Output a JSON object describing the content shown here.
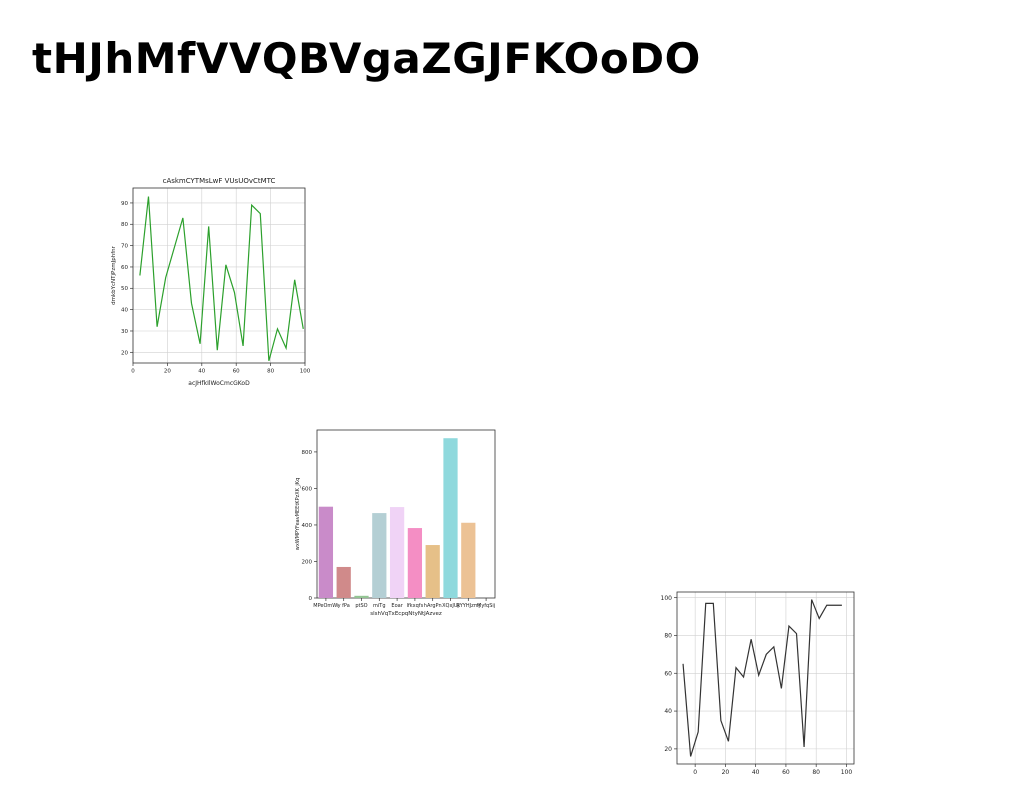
{
  "page": {
    "title": "tHJhMfVVQBVgaZGJFKOoDO"
  },
  "chart_data": [
    {
      "type": "line",
      "title": "cAskmCYTMsLwF VUsUOvCtMTC",
      "xlabel": "acJHfkIlWoCmcGKoD",
      "ylabel": "dmkbYcNTjPzmJphfnr",
      "xlim": [
        0,
        100
      ],
      "ylim": [
        15,
        97
      ],
      "xticks": [
        0,
        20,
        40,
        60,
        80,
        100
      ],
      "yticks": [
        20,
        30,
        40,
        50,
        60,
        70,
        80,
        90
      ],
      "grid": true,
      "line_color": "#2ca02c",
      "x": [
        4,
        9,
        14,
        19,
        29,
        34,
        39,
        44,
        49,
        54,
        59,
        64,
        69,
        74,
        79,
        84,
        89,
        94,
        99
      ],
      "values": [
        56,
        93,
        32,
        55,
        83,
        43,
        24,
        79,
        21,
        61,
        48,
        23,
        89,
        85,
        16,
        31,
        22,
        54,
        31
      ]
    },
    {
      "type": "bar",
      "title": "",
      "xlabel": "slshVqTxEcpqNtyNtJAzvez",
      "ylabel": "wxWMPYFeavMEEtKPzXK_jKq",
      "ylim": [
        0,
        920
      ],
      "yticks": [
        0,
        200,
        400,
        600,
        800
      ],
      "grid": false,
      "categories": [
        "MPeOmWi",
        "y fPa",
        "ptSO",
        "miTg",
        "Eoar",
        "lfkxqfs",
        "hArgPn",
        "XQxJUj",
        "RYYHJzmj",
        "MyfqSij"
      ],
      "values": [
        500,
        170,
        12,
        465,
        498,
        383,
        290,
        875,
        412,
        0
      ],
      "colors": [
        "#c98bc9",
        "#d08a8a",
        "#93c493",
        "#b4cfd4",
        "#f0d3f6",
        "#f48ec4",
        "#e6c088",
        "#8fd9dd",
        "#ecc295",
        "#ecc295"
      ]
    },
    {
      "type": "line",
      "title": "",
      "xlabel": "",
      "ylabel": "",
      "xlim": [
        -12,
        105
      ],
      "ylim": [
        12,
        103
      ],
      "xticks": [
        0,
        20,
        40,
        60,
        80,
        100
      ],
      "yticks": [
        20,
        40,
        60,
        80,
        100
      ],
      "grid": true,
      "line_color": "#333333",
      "x": [
        -8,
        -3,
        2,
        7,
        12,
        17,
        22,
        27,
        32,
        37,
        42,
        47,
        52,
        57,
        62,
        67,
        72,
        77,
        82,
        87,
        92,
        97
      ],
      "values": [
        65,
        16,
        29,
        97,
        97,
        35,
        24,
        63,
        58,
        78,
        59,
        70,
        74,
        52,
        85,
        81,
        21,
        99,
        89,
        96,
        96,
        96
      ]
    }
  ]
}
